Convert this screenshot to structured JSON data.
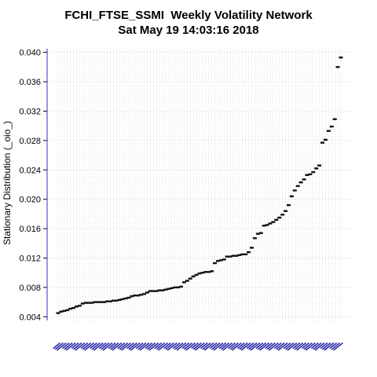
{
  "chart_data": {
    "type": "scatter",
    "title": "FCHI_FTSE_SSMI  Weekly Volatility Network",
    "subtitle": "Sat May 19 14:03:16 2018",
    "xlabel": "",
    "ylabel": "Stationary Distribution (_oio_)",
    "ylim": [
      0.0035,
      0.0405
    ],
    "yticks": [
      "0.004",
      "0.008",
      "0.012",
      "0.016",
      "0.020",
      "0.024",
      "0.028",
      "0.032",
      "0.036",
      "0.040"
    ],
    "grid": true,
    "x_tick_labels_legible": false,
    "values": [
      0.0045,
      0.0047,
      0.0048,
      0.0049,
      0.0051,
      0.0052,
      0.0054,
      0.0055,
      0.0058,
      0.0059,
      0.0059,
      0.0059,
      0.006,
      0.006,
      0.006,
      0.006,
      0.0061,
      0.0061,
      0.0062,
      0.0062,
      0.0063,
      0.0064,
      0.0065,
      0.0066,
      0.0068,
      0.0069,
      0.0069,
      0.007,
      0.0071,
      0.0073,
      0.0075,
      0.0075,
      0.0075,
      0.0076,
      0.0076,
      0.0077,
      0.0078,
      0.0079,
      0.008,
      0.008,
      0.0081,
      0.0087,
      0.0089,
      0.0092,
      0.0095,
      0.0097,
      0.0099,
      0.01,
      0.0101,
      0.0101,
      0.0102,
      0.0113,
      0.0116,
      0.0117,
      0.0118,
      0.0122,
      0.0122,
      0.0123,
      0.0123,
      0.0124,
      0.0125,
      0.0125,
      0.0128,
      0.0134,
      0.0147,
      0.0153,
      0.0154,
      0.0164,
      0.0165,
      0.0167,
      0.0169,
      0.0172,
      0.0175,
      0.0179,
      0.0184,
      0.0192,
      0.0204,
      0.0212,
      0.0218,
      0.0223,
      0.0227,
      0.0233,
      0.0234,
      0.0237,
      0.0242,
      0.0246,
      0.0277,
      0.0281,
      0.0293,
      0.0299,
      0.0309,
      0.038,
      0.0393
    ]
  }
}
